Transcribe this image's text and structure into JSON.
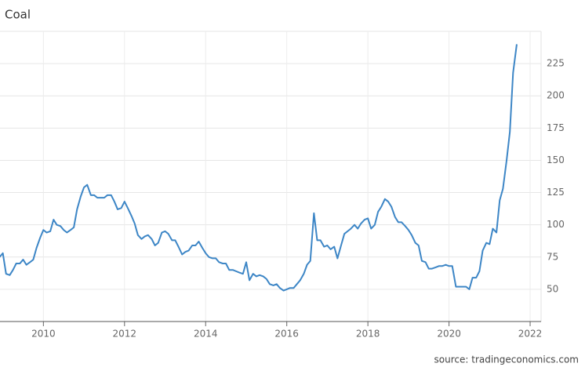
{
  "chart_data": {
    "type": "line",
    "title": "Coal",
    "source": "source: tradingeconomics.com",
    "x": [
      2008.92,
      2009.0,
      2009.08,
      2009.17,
      2009.25,
      2009.33,
      2009.42,
      2009.5,
      2009.58,
      2009.67,
      2009.75,
      2009.83,
      2009.92,
      2010.0,
      2010.08,
      2010.17,
      2010.25,
      2010.33,
      2010.42,
      2010.5,
      2010.58,
      2010.67,
      2010.75,
      2010.83,
      2010.92,
      2011.0,
      2011.08,
      2011.17,
      2011.25,
      2011.33,
      2011.42,
      2011.5,
      2011.58,
      2011.67,
      2011.75,
      2011.83,
      2011.92,
      2012.0,
      2012.08,
      2012.17,
      2012.25,
      2012.33,
      2012.42,
      2012.5,
      2012.58,
      2012.67,
      2012.75,
      2012.83,
      2012.92,
      2013.0,
      2013.08,
      2013.17,
      2013.25,
      2013.33,
      2013.42,
      2013.5,
      2013.58,
      2013.67,
      2013.75,
      2013.83,
      2013.92,
      2014.0,
      2014.08,
      2014.17,
      2014.25,
      2014.33,
      2014.42,
      2014.5,
      2014.58,
      2014.67,
      2014.75,
      2014.83,
      2014.92,
      2015.0,
      2015.08,
      2015.17,
      2015.25,
      2015.33,
      2015.42,
      2015.5,
      2015.58,
      2015.67,
      2015.75,
      2015.83,
      2015.92,
      2016.0,
      2016.08,
      2016.17,
      2016.25,
      2016.33,
      2016.42,
      2016.5,
      2016.58,
      2016.67,
      2016.75,
      2016.83,
      2016.92,
      2017.0,
      2017.08,
      2017.17,
      2017.25,
      2017.33,
      2017.42,
      2017.5,
      2017.58,
      2017.67,
      2017.75,
      2017.83,
      2017.92,
      2018.0,
      2018.08,
      2018.17,
      2018.25,
      2018.33,
      2018.42,
      2018.5,
      2018.58,
      2018.67,
      2018.75,
      2018.83,
      2018.92,
      2019.0,
      2019.08,
      2019.17,
      2019.25,
      2019.33,
      2019.42,
      2019.5,
      2019.58,
      2019.67,
      2019.75,
      2019.83,
      2019.92,
      2020.0,
      2020.08,
      2020.17,
      2020.25,
      2020.33,
      2020.42,
      2020.5,
      2020.58,
      2020.67,
      2020.75,
      2020.83,
      2020.92,
      2021.0,
      2021.08,
      2021.17,
      2021.25,
      2021.33,
      2021.42,
      2021.5,
      2021.58,
      2021.67
    ],
    "series": [
      {
        "name": "Coal",
        "color": "#3d86c6",
        "values": [
          75,
          78,
          62,
          61,
          65,
          70,
          70,
          73,
          69,
          71,
          73,
          82,
          90,
          96,
          94,
          95,
          104,
          100,
          99,
          96,
          94,
          96,
          98,
          112,
          122,
          129,
          131,
          123,
          123,
          121,
          121,
          121,
          123,
          123,
          118,
          112,
          113,
          118,
          113,
          107,
          101,
          92,
          89,
          91,
          92,
          89,
          84,
          86,
          94,
          95,
          93,
          88,
          88,
          83,
          77,
          79,
          80,
          84,
          84,
          87,
          82,
          78,
          75,
          74,
          74,
          71,
          70,
          70,
          65,
          65,
          64,
          63,
          62,
          71,
          57,
          62,
          60,
          61,
          60,
          58,
          54,
          53,
          54,
          51,
          49,
          50,
          51,
          51,
          54,
          57,
          62,
          69,
          72,
          109,
          88,
          88,
          83,
          84,
          81,
          83,
          74,
          83,
          93,
          95,
          97,
          100,
          97,
          101,
          104,
          105,
          97,
          100,
          110,
          114,
          120,
          118,
          114,
          106,
          102,
          102,
          99,
          96,
          92,
          86,
          84,
          72,
          71,
          66,
          66,
          67,
          68,
          68,
          69,
          68,
          68,
          52,
          52,
          52,
          52,
          50,
          59,
          59,
          64,
          80,
          86,
          85,
          97,
          94,
          119,
          128,
          150,
          172,
          218,
          240
        ]
      }
    ],
    "xlim": [
      2008.93,
      2022.27
    ],
    "xticks": [
      2010,
      2012,
      2014,
      2016,
      2018,
      2020,
      2022
    ],
    "ylim": [
      25,
      250
    ],
    "yticks": [
      50,
      75,
      100,
      125,
      150,
      175,
      200,
      225
    ],
    "grid": true
  }
}
